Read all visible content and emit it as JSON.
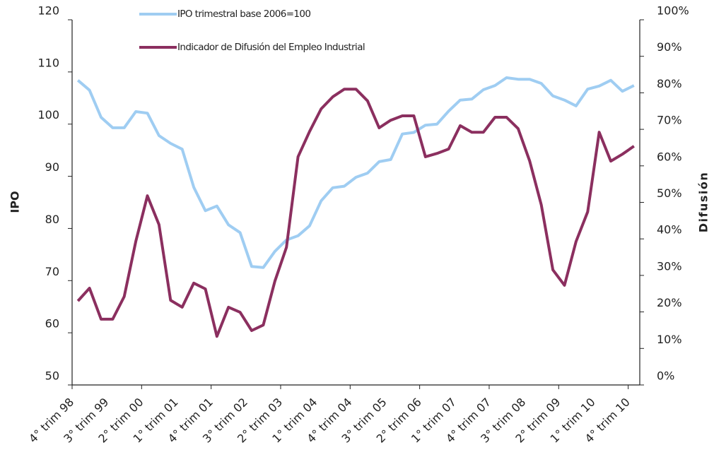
{
  "chart_data": {
    "type": "line",
    "categories": [
      "4° trim 98",
      null,
      null,
      "3° trim 99",
      null,
      null,
      "2° trim 00",
      null,
      null,
      "1° trim 01",
      null,
      null,
      "4° trim 01",
      null,
      null,
      "3° trim 02",
      null,
      null,
      "2° trim 03",
      null,
      null,
      "1° trim 04",
      null,
      null,
      "4° trim 04",
      null,
      null,
      "3° trim 05",
      null,
      null,
      "2° trim 06",
      null,
      null,
      "1° trim 07",
      null,
      null,
      "4° trim 07",
      null,
      null,
      "3° trim 08",
      null,
      null,
      "2° trim 09",
      null,
      null,
      "1° trim 10",
      null,
      null,
      "4° trim 10"
    ],
    "series": [
      {
        "name": "IPO trimestral base 2006=100",
        "color": "#9fcdf2",
        "values": [
          108.4,
          106.5,
          101.3,
          99.3,
          99.3,
          102.4,
          102.1,
          97.8,
          96.3,
          95.2,
          87.9,
          83.4,
          84.3,
          80.7,
          79.2,
          72.7,
          72.5,
          75.6,
          77.8,
          78.6,
          80.5,
          85.3,
          87.8,
          88.1,
          89.8,
          90.6,
          92.8,
          93.2,
          98.1,
          98.4,
          99.8,
          100,
          102.5,
          104.6,
          104.8,
          106.6,
          107.4,
          108.9,
          108.6,
          108.6,
          107.8,
          105.4,
          104.6,
          103.5,
          106.7,
          107.3,
          108.4,
          106.3,
          107.4
        ]
      },
      {
        "name": "Indicador de Difusión del Empleo Industrial",
        "color": "#8b2f5f",
        "axis": "y2",
        "values": [
          23,
          26.5,
          18,
          18,
          24.2,
          39.3,
          51.8,
          43.9,
          23.2,
          21.3,
          27.9,
          26.3,
          13.3,
          21.3,
          19.9,
          14.9,
          16.4,
          28.4,
          37.7,
          62.5,
          69.4,
          75.6,
          78.9,
          81,
          81,
          77.8,
          70.4,
          72.5,
          73.7,
          73.7,
          62.5,
          63.4,
          64.6,
          71,
          69.2,
          69.2,
          73.3,
          73.3,
          70.2,
          61.3,
          49.3,
          31.5,
          27.3,
          39.3,
          47.4,
          69.2,
          61.3,
          63.2,
          65.4
        ]
      }
    ],
    "ylabel": "IPO",
    "y2label": "Difusión",
    "ylim": [
      50,
      120
    ],
    "yticks": [
      50,
      60,
      70,
      80,
      90,
      100,
      110,
      120
    ],
    "y2lim": [
      0,
      100
    ],
    "y2ticks": [
      {
        "value": 0,
        "label": "0%"
      },
      {
        "value": 10,
        "label": "10%"
      },
      {
        "value": 20,
        "label": "20%"
      },
      {
        "value": 30,
        "label": "30%"
      },
      {
        "value": 40,
        "label": "40%"
      },
      {
        "value": 50,
        "label": "50%"
      },
      {
        "value": 60,
        "label": "60%"
      },
      {
        "value": 70,
        "label": "70%"
      },
      {
        "value": 80,
        "label": "80%"
      },
      {
        "value": 90,
        "label": "90%"
      },
      {
        "value": 100,
        "label": "100%"
      }
    ]
  }
}
